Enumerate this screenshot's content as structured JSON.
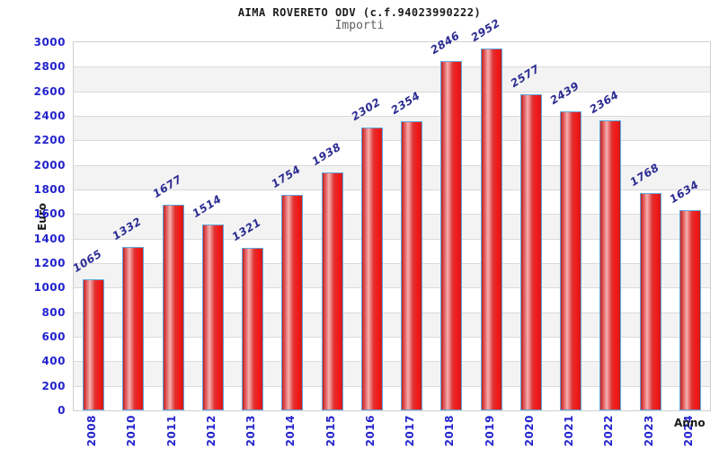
{
  "header": {
    "title": "AIMA ROVERETO ODV (c.f.94023990222)",
    "subtitle": "Importi"
  },
  "chart_data": {
    "type": "bar",
    "title": "AIMA ROVERETO ODV (c.f.94023990222)",
    "subtitle": "Importi",
    "categories": [
      "2008",
      "2010",
      "2011",
      "2012",
      "2013",
      "2014",
      "2015",
      "2016",
      "2017",
      "2018",
      "2019",
      "2020",
      "2021",
      "2022",
      "2023",
      "2024"
    ],
    "values": [
      1065,
      1332,
      1677,
      1514,
      1321,
      1754,
      1938,
      2302,
      2354,
      2846,
      2952,
      2577,
      2439,
      2364,
      1768,
      1634
    ],
    "xlabel": "Anno",
    "ylabel": "Euro",
    "ylim": [
      0,
      3000
    ],
    "ytick_step": 200,
    "yticks": [
      0,
      200,
      400,
      600,
      800,
      1000,
      1200,
      1400,
      1600,
      1800,
      2000,
      2200,
      2400,
      2600,
      2800,
      3000
    ],
    "grid": true,
    "legend": "none",
    "colors": {
      "bar_border": "#5fa8dc",
      "bar_gradient": [
        "#c22020",
        "#e86a6a",
        "#f5b0b0",
        "#e03030",
        "#f51717",
        "#c81e1e"
      ],
      "tick_label": "#2323cd",
      "value_label": "#2b2b92",
      "stripe_gray": "#f3f3f3",
      "stripe_white": "#ffffff",
      "gridline": "#dadada",
      "plot_border": "#cfcfcf"
    }
  }
}
